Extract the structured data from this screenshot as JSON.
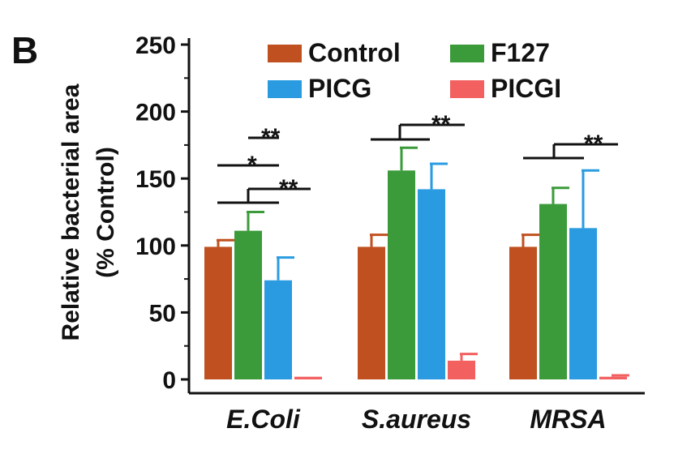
{
  "panel_label": "B",
  "chart_data": {
    "type": "bar",
    "title": "",
    "xlabel": "",
    "ylabel": "Relative bacterial area\n(% Control)",
    "ylim": [
      0,
      250
    ],
    "yticks": [
      0,
      50,
      100,
      150,
      200,
      250
    ],
    "categories": [
      "E.Coli",
      "S.aureus",
      "MRSA"
    ],
    "series": [
      {
        "name": "Control",
        "color": "#c0501f",
        "values": [
          99,
          99,
          99
        ],
        "errors": [
          5,
          9,
          9
        ]
      },
      {
        "name": "F127",
        "color": "#3b9b3a",
        "values": [
          111,
          156,
          131
        ],
        "errors": [
          14,
          17,
          12
        ]
      },
      {
        "name": "PICG",
        "color": "#2a9be0",
        "values": [
          74,
          142,
          113
        ],
        "errors": [
          17,
          19,
          43
        ]
      },
      {
        "name": "PICGI",
        "color": "#f26060",
        "values": [
          2,
          14,
          2
        ],
        "errors": [
          0,
          5,
          1
        ]
      }
    ],
    "legend_position": "top",
    "significance": [
      {
        "category": "E.Coli",
        "label": "**"
      },
      {
        "category": "E.Coli",
        "label": "*"
      },
      {
        "category": "E.Coli",
        "label": "**"
      },
      {
        "category": "S.aureus",
        "label": "**"
      },
      {
        "category": "MRSA",
        "label": "**"
      }
    ]
  }
}
